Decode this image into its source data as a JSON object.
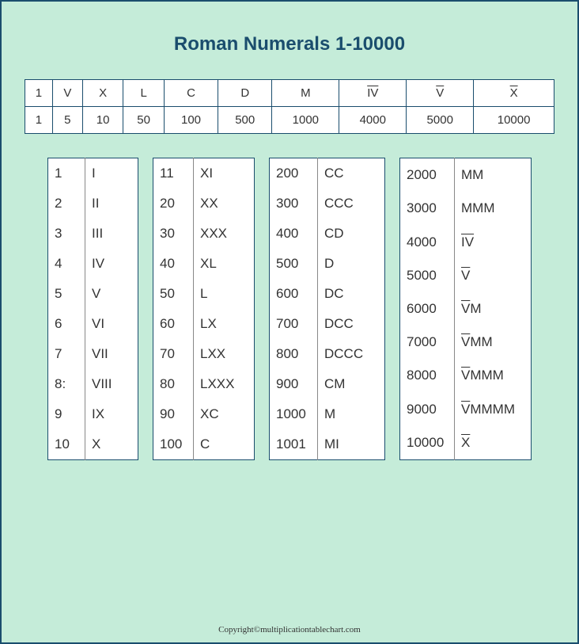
{
  "title": "Roman Numerals 1-10000",
  "header": {
    "romans": [
      "1",
      "V",
      "X",
      "L",
      "C",
      "D",
      "M",
      "IV",
      "V",
      "X"
    ],
    "romans_overline": [
      false,
      false,
      false,
      false,
      false,
      false,
      false,
      true,
      true,
      true
    ],
    "values": [
      "1",
      "5",
      "10",
      "50",
      "100",
      "500",
      "1000",
      "4000",
      "5000",
      "10000"
    ]
  },
  "columns": [
    {
      "rows": [
        {
          "n": "1",
          "r": "I",
          "ov": ""
        },
        {
          "n": "2",
          "r": "II",
          "ov": ""
        },
        {
          "n": "3",
          "r": "III",
          "ov": ""
        },
        {
          "n": "4",
          "r": "IV",
          "ov": ""
        },
        {
          "n": "5",
          "r": "V",
          "ov": ""
        },
        {
          "n": "6",
          "r": "VI",
          "ov": ""
        },
        {
          "n": "7",
          "r": "VII",
          "ov": ""
        },
        {
          "n": "8:",
          "r": "VIII",
          "ov": ""
        },
        {
          "n": "9",
          "r": "IX",
          "ov": ""
        },
        {
          "n": "10",
          "r": "X",
          "ov": ""
        }
      ]
    },
    {
      "rows": [
        {
          "n": "11",
          "r": "XI",
          "ov": ""
        },
        {
          "n": "20",
          "r": "XX",
          "ov": ""
        },
        {
          "n": "30",
          "r": "XXX",
          "ov": ""
        },
        {
          "n": "40",
          "r": "XL",
          "ov": ""
        },
        {
          "n": "50",
          "r": "L",
          "ov": ""
        },
        {
          "n": "60",
          "r": "LX",
          "ov": ""
        },
        {
          "n": "70",
          "r": "LXX",
          "ov": ""
        },
        {
          "n": "80",
          "r": "LXXX",
          "ov": ""
        },
        {
          "n": "90",
          "r": "XC",
          "ov": ""
        },
        {
          "n": "100",
          "r": "C",
          "ov": ""
        }
      ]
    },
    {
      "rows": [
        {
          "n": "200",
          "r": "CC",
          "ov": ""
        },
        {
          "n": "300",
          "r": "CCC",
          "ov": ""
        },
        {
          "n": "400",
          "r": "CD",
          "ov": ""
        },
        {
          "n": "500",
          "r": "D",
          "ov": ""
        },
        {
          "n": "600",
          "r": "DC",
          "ov": ""
        },
        {
          "n": "700",
          "r": "DCC",
          "ov": ""
        },
        {
          "n": "800",
          "r": "DCCC",
          "ov": ""
        },
        {
          "n": "900",
          "r": "CM",
          "ov": ""
        },
        {
          "n": "1000",
          "r": "M",
          "ov": ""
        },
        {
          "n": "1001",
          "r": "MI",
          "ov": ""
        }
      ]
    },
    {
      "rows": [
        {
          "n": "2000",
          "r": "MM",
          "ov": ""
        },
        {
          "n": "3000",
          "r": "MMM",
          "ov": ""
        },
        {
          "n": "4000",
          "r": "",
          "ov": "IV"
        },
        {
          "n": "5000",
          "r": "",
          "ov": "V"
        },
        {
          "n": "6000",
          "r": "M",
          "ov": "V"
        },
        {
          "n": "7000",
          "r": "MM",
          "ov": "V"
        },
        {
          "n": "8000",
          "r": "MMM",
          "ov": "V"
        },
        {
          "n": "9000",
          "r": "MMMM",
          "ov": "V"
        },
        {
          "n": "10000",
          "r": "",
          "ov": "X"
        }
      ]
    }
  ],
  "footer": "Copyright©multiplicationtablechart.com",
  "colors": {
    "background": "#c5ecd9",
    "border": "#1a4d6d",
    "title": "#1a4d6d",
    "cell_bg": "#ffffff",
    "text": "#333333"
  }
}
